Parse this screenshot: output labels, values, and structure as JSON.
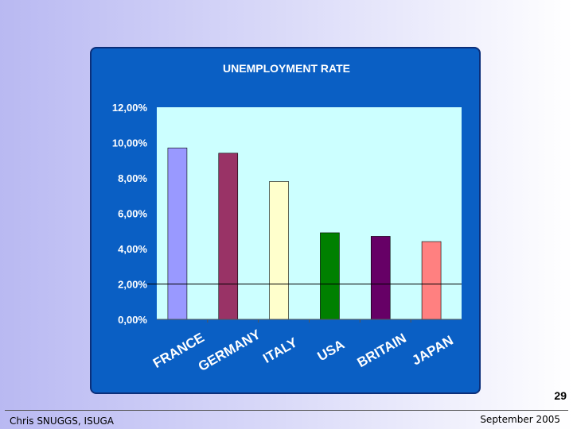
{
  "slide": {
    "number": "29",
    "footer_left": "Chris SNUGGS, ISUGA",
    "footer_right": "September 2005"
  },
  "colors": {
    "panel": "#0a5fc4",
    "plot": "#ccffff"
  },
  "chart_data": {
    "type": "bar",
    "title": "UNEMPLOYMENT RATE",
    "categories": [
      "FRANCE",
      "GERMANY",
      "ITALY",
      "USA",
      "BRITAIN",
      "JAPAN"
    ],
    "values": [
      9.7,
      9.4,
      7.8,
      4.9,
      4.7,
      4.4
    ],
    "bar_colors": [
      "#9999ff",
      "#993366",
      "#ffffcc",
      "#008000",
      "#660066",
      "#ff8080"
    ],
    "yticks": [
      "0,00%",
      "2,00%",
      "4,00%",
      "6,00%",
      "8,00%",
      "10,00%",
      "12,00%"
    ],
    "ylim": [
      0,
      12
    ],
    "reference_line": 2,
    "grid": false,
    "legend": "none"
  }
}
